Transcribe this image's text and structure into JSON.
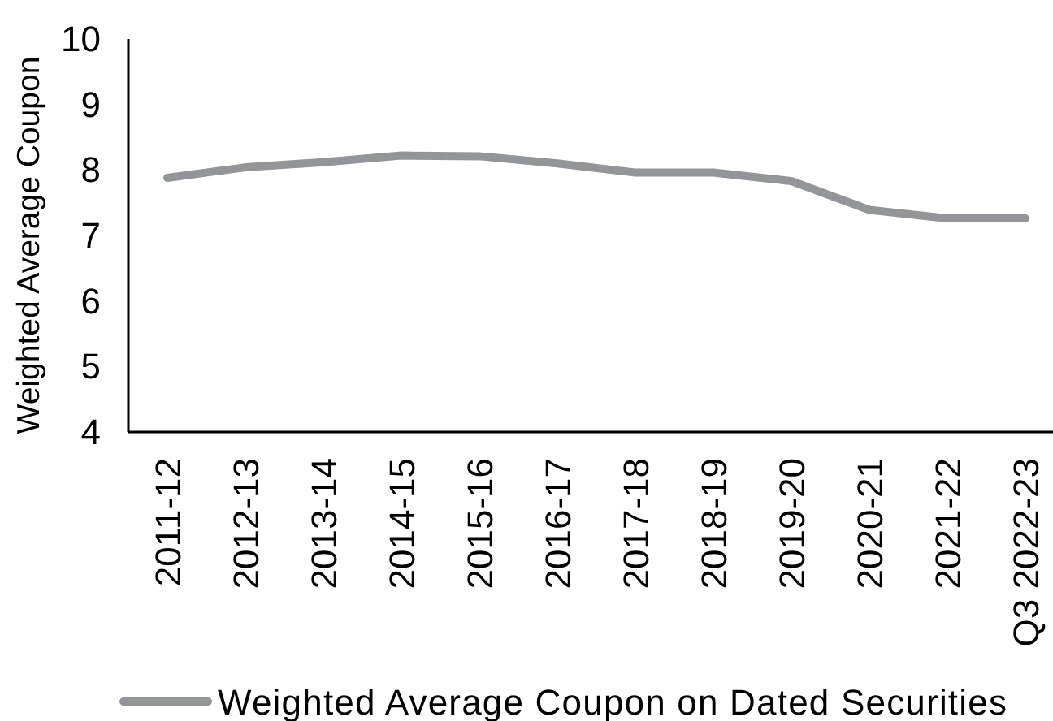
{
  "chart_data": {
    "type": "line",
    "ylabel": "Weighted Average Coupon",
    "categories": [
      "2011-12",
      "2012-13",
      "2013-14",
      "2014-15",
      "2015-16",
      "2016-17",
      "2017-18",
      "2018-19",
      "2019-20",
      "2020-21",
      "2021-22",
      "Q3 2022-23"
    ],
    "series": [
      {
        "name": "Weighted Average Coupon on Dated Securities",
        "color": "#939598",
        "values": [
          7.88,
          8.04,
          8.12,
          8.22,
          8.21,
          8.1,
          7.96,
          7.96,
          7.83,
          7.39,
          7.26,
          7.26
        ]
      }
    ],
    "ylim": [
      4,
      10
    ],
    "yticks": [
      4,
      5,
      6,
      7,
      8,
      9,
      10
    ],
    "legend": "bottom"
  }
}
